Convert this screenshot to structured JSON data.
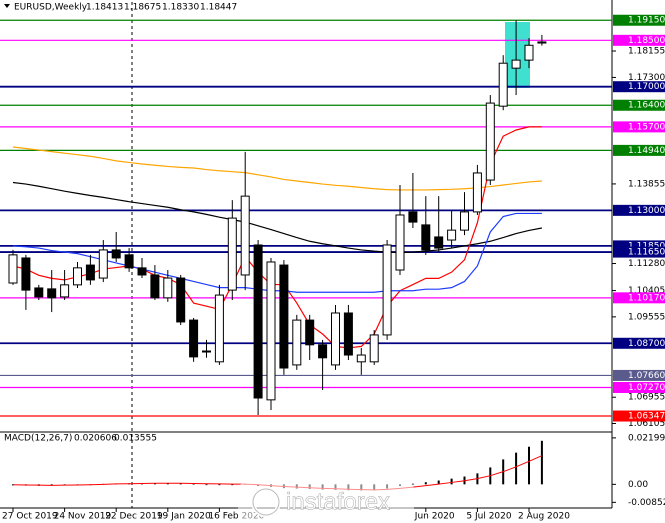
{
  "chart_data": [
    {
      "type": "candlestick",
      "title": "EURUSD,Weekly",
      "ohlc_labels": [
        "1.18413",
        "1.18675",
        "1.18330",
        "1.18447"
      ],
      "categories": [
        "27 Oct 2019",
        null,
        null,
        null,
        "24 Nov 2019",
        null,
        null,
        null,
        "22 Dec 2019",
        null,
        null,
        null,
        "19 Jan 2020",
        null,
        null,
        null,
        "16 Feb 2020",
        null,
        null,
        null,
        null,
        null,
        null,
        null,
        null,
        null,
        null,
        null,
        null,
        null,
        null,
        null,
        "Jun 2020",
        null,
        null,
        null,
        "5 Jul 2020",
        null,
        null,
        null,
        "2 Aug 2020",
        null
      ],
      "open": [
        1.1065,
        1.1146,
        1.1049,
        1.1046,
        1.102,
        1.1059,
        1.1123,
        1.1081,
        1.1172,
        1.1156,
        1.1114,
        1.1091,
        1.1017,
        1.1081,
        1.0945,
        1.0842,
        1.081,
        1.1042,
        1.1091,
        1.1188,
        1.0687,
        1.1123,
        1.08,
        1.0945,
        1.0865,
        1.08,
        1.0968,
        1.081,
        1.081,
        1.0897,
        1.1107,
        1.1295,
        1.1253,
        1.1214,
        1.1204,
        1.1236,
        1.1295,
        1.1398,
        1.1637,
        1.176,
        1.1786,
        1.18413
      ],
      "high": [
        1.1172,
        1.1156,
        1.1059,
        1.1107,
        1.1107,
        1.1133,
        1.1156,
        1.1204,
        1.123,
        1.1178,
        1.1146,
        1.1123,
        1.1107,
        1.1091,
        1.0952,
        1.0881,
        1.1059,
        1.1333,
        1.1489,
        1.1204,
        1.1146,
        1.1139,
        1.0962,
        1.0962,
        1.0881,
        1.0994,
        1.0994,
        1.0855,
        1.0913,
        1.1204,
        1.1382,
        1.1421,
        1.1346,
        1.1346,
        1.1301,
        1.1359,
        1.1447,
        1.1673,
        1.1802,
        1.1915,
        1.1857,
        1.18675
      ],
      "low": [
        1.1059,
        1.0978,
        1.101,
        1.0971,
        1.101,
        1.1049,
        1.1059,
        1.1068,
        1.1133,
        1.1101,
        1.1081,
        1.101,
        1.1004,
        1.0929,
        1.081,
        1.0823,
        1.08,
        1.101,
        1.1042,
        1.0638,
        1.0654,
        1.0768,
        1.0784,
        1.0816,
        1.0719,
        1.0784,
        1.0816,
        1.0768,
        1.08,
        1.0881,
        1.1091,
        1.1243,
        1.1156,
        1.1165,
        1.1178,
        1.122,
        1.1285,
        1.1382,
        1.1624,
        1.1673,
        1.176,
        1.1833
      ],
      "close": [
        1.1156,
        1.1042,
        1.102,
        1.1017,
        1.1059,
        1.1114,
        1.1075,
        1.1172,
        1.1146,
        1.1114,
        1.1091,
        1.1017,
        1.1081,
        1.0939,
        1.0826,
        1.0845,
        1.1026,
        1.1275,
        1.1346,
        1.0693,
        1.1133,
        1.079,
        1.0945,
        1.0865,
        1.0823,
        1.0968,
        1.0832,
        1.0832,
        1.0897,
        1.1188,
        1.1285,
        1.1262,
        1.1172,
        1.1178,
        1.1236,
        1.1295,
        1.1421,
        1.1647,
        1.1776,
        1.1786,
        1.1834,
        1.18447
      ],
      "up_color": "#ffffff",
      "down_color": "#000000",
      "ylim": [
        1.0583,
        1.1974
      ],
      "yticks": [
        {
          "value": 1.18155,
          "label": "1.18155"
        },
        {
          "value": 1.173,
          "label": "1.17300"
        },
        {
          "value": 1.13855,
          "label": "1.13855"
        },
        {
          "value": 1.1128,
          "label": "1.11280"
        },
        {
          "value": 1.10405,
          "label": "1.10405"
        },
        {
          "value": 1.09555,
          "label": "1.09555"
        },
        {
          "value": 1.06955,
          "label": "1.06955"
        },
        {
          "value": 1.06105,
          "label": "1.06105"
        }
      ],
      "levels": [
        {
          "value": 1.1915,
          "label": "1.19150",
          "color": "#008000"
        },
        {
          "value": 1.185,
          "label": "1.18500",
          "color": "#ff00ff"
        },
        {
          "value": 1.17,
          "label": "1.17000",
          "color": "#000080"
        },
        {
          "value": 1.164,
          "label": "1.16400",
          "color": "#008000"
        },
        {
          "value": 1.157,
          "label": "1.15700",
          "color": "#ff00ff"
        },
        {
          "value": 1.1494,
          "label": "1.14940",
          "color": "#008000"
        },
        {
          "value": 1.13,
          "label": "1.13000",
          "color": "#000080"
        },
        {
          "value": 1.1185,
          "label": "1.11850",
          "color": "#000080"
        },
        {
          "value": 1.1165,
          "label": "1.11650",
          "color": "#000080"
        },
        {
          "value": 1.1017,
          "label": "1.10170",
          "color": "#ff00ff"
        },
        {
          "value": 1.087,
          "label": "1.08700",
          "color": "#000080"
        },
        {
          "value": 1.0766,
          "label": "1.07660",
          "color": "#5a5a8c"
        },
        {
          "value": 1.0727,
          "label": "1.07270",
          "color": "#ff00ff"
        },
        {
          "value": 1.06347,
          "label": "1.06347",
          "color": "#ff0000"
        }
      ],
      "lines": [
        {
          "color": "#ffa500",
          "values": [
            1.1505,
            1.15,
            1.1495,
            1.149,
            1.1485,
            1.148,
            1.1475,
            1.1468,
            1.146,
            1.1455,
            1.145,
            1.1446,
            1.1442,
            1.1439,
            1.1437,
            1.1432,
            1.1428,
            1.1425,
            1.1422,
            1.1415,
            1.1408,
            1.14,
            1.1395,
            1.139,
            1.1385,
            1.1381,
            1.1378,
            1.1374,
            1.137,
            1.1367,
            1.1366,
            1.1366,
            1.1366,
            1.1367,
            1.1368,
            1.137,
            1.1373,
            1.1377,
            1.1382,
            1.1387,
            1.1392,
            1.1395
          ]
        },
        {
          "color": "#000000",
          "values": [
            1.139,
            1.1385,
            1.1378,
            1.137,
            1.1362,
            1.1355,
            1.1348,
            1.1342,
            1.1335,
            1.1328,
            1.1322,
            1.1316,
            1.131,
            1.1302,
            1.1295,
            1.1287,
            1.1278,
            1.127,
            1.1262,
            1.125,
            1.1238,
            1.1225,
            1.1212,
            1.12,
            1.1192,
            1.1185,
            1.1178,
            1.1172,
            1.1168,
            1.1165,
            1.1163,
            1.1165,
            1.1168,
            1.1172,
            1.1178,
            1.1185,
            1.1192,
            1.12,
            1.1212,
            1.1225,
            1.1235,
            1.1243
          ]
        },
        {
          "color": "#ff0000",
          "values": [
            1.112,
            1.111,
            1.109,
            1.108,
            1.1075,
            1.1085,
            1.1095,
            1.111,
            1.1115,
            1.112,
            1.111,
            1.109,
            1.108,
            1.106,
            1.1,
            1.099,
            1.098,
            1.106,
            1.115,
            1.11,
            1.106,
            1.106,
            1.1,
            1.093,
            1.09,
            1.086,
            1.0855,
            1.086,
            1.09,
            1.099,
            1.104,
            1.106,
            1.108,
            1.108,
            1.11,
            1.114,
            1.126,
            1.145,
            1.154,
            1.156,
            1.157,
            1.157
          ]
        },
        {
          "color": "#1e3cff",
          "values": [
            1.1185,
            1.1182,
            1.1178,
            1.117,
            1.1165,
            1.116,
            1.115,
            1.114,
            1.113,
            1.112,
            1.111,
            1.11,
            1.109,
            1.108,
            1.107,
            1.106,
            1.105,
            1.105,
            1.105,
            1.1045,
            1.104,
            1.104,
            1.1035,
            1.1035,
            1.1035,
            1.1035,
            1.1035,
            1.1035,
            1.1035,
            1.104,
            1.104,
            1.104,
            1.1045,
            1.1045,
            1.105,
            1.107,
            1.112,
            1.123,
            1.128,
            1.129,
            1.129,
            1.129
          ]
        }
      ],
      "watermark": "instaforex"
    },
    {
      "type": "macd",
      "title": "MACD(12,26,7)",
      "series": [
        {
          "color": "#000000",
          "values": [
            -0.0005,
            -0.0006,
            -0.0007,
            -0.0006,
            -0.0004,
            -0.0002,
            0.0,
            0.0002,
            0.0004,
            0.0005,
            0.0006,
            0.0006,
            0.0006,
            0.0005,
            0.0003,
            0.0,
            -0.0002,
            -0.0001,
            0.0002,
            -0.0008,
            -0.0012,
            -0.0018,
            -0.002,
            -0.0022,
            -0.0025,
            -0.0026,
            -0.0028,
            -0.0029,
            -0.0028,
            -0.002,
            -0.0008,
            0.0003,
            0.001,
            0.0018,
            0.0027,
            0.0037,
            0.0052,
            0.008,
            0.0118,
            0.015,
            0.0178,
            0.020606
          ]
        },
        {
          "color": "#ff0000",
          "values": [
            -0.0002,
            -0.0003,
            -0.0004,
            -0.0005,
            -0.0004,
            -0.0003,
            -0.0002,
            0.0,
            0.0002,
            0.0003,
            0.0004,
            0.0005,
            0.0005,
            0.0005,
            0.0004,
            0.0003,
            0.0002,
            0.0001,
            0.0001,
            -0.0002,
            -0.0006,
            -0.001,
            -0.0013,
            -0.0016,
            -0.0019,
            -0.0021,
            -0.0023,
            -0.0025,
            -0.0026,
            -0.0024,
            -0.0019,
            -0.0013,
            -0.0006,
            0.0001,
            0.0009,
            0.0017,
            0.0027,
            0.0041,
            0.006,
            0.0083,
            0.0109,
            0.013555
          ]
        }
      ],
      "ylim": [
        -0.0112,
        0.0243
      ],
      "yticks": [
        0.021994,
        {
          "value": 0,
          "label": "0.00"
        },
        -0.008524
      ]
    }
  ]
}
